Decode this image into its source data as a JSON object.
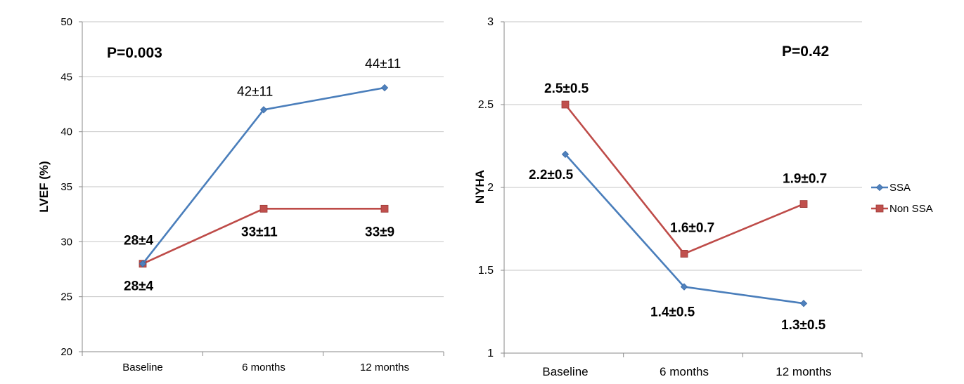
{
  "colors": {
    "ssa": "#4a7ebb",
    "ssa_marker": "#4f81bd",
    "nonssa": "#be4b48",
    "nonssa_marker": "#c0504d",
    "grid": "#c6c6c6",
    "axis": "#8a8a8a",
    "text": "#000000"
  },
  "legend": {
    "placement": "right",
    "items": [
      {
        "label": "SSA",
        "series": "ssa"
      },
      {
        "label": "Non SSA",
        "series": "nonssa"
      }
    ]
  },
  "chart_data": [
    {
      "type": "line",
      "title": "",
      "ylabel": "LVEF (%)",
      "xlabel": "",
      "categories": [
        "Baseline",
        "6 months",
        "12 months"
      ],
      "ylim": [
        20,
        50
      ],
      "yticks": [
        20,
        25,
        30,
        35,
        40,
        45,
        50
      ],
      "grid": true,
      "annotation": "P=0.003",
      "series": [
        {
          "key": "ssa",
          "values": [
            28,
            42,
            44
          ],
          "labels": [
            "28±4",
            "42±11",
            "44±11"
          ]
        },
        {
          "key": "nonssa",
          "values": [
            28,
            33,
            33
          ],
          "labels": [
            "28±4",
            "33±11",
            "33±9"
          ]
        }
      ]
    },
    {
      "type": "line",
      "title": "",
      "ylabel": "NYHA",
      "xlabel": "",
      "categories": [
        "Baseline",
        "6 months",
        "12 months"
      ],
      "ylim": [
        1,
        3
      ],
      "yticks": [
        1,
        1.5,
        2,
        2.5,
        3
      ],
      "grid": true,
      "annotation": "P=0.42",
      "series": [
        {
          "key": "ssa",
          "name": "SSA",
          "values": [
            2.2,
            1.4,
            1.3
          ],
          "labels": [
            "2.2±0.5",
            "1.4±0.5",
            "1.3±0.5"
          ]
        },
        {
          "key": "nonssa",
          "name": "Non SSA",
          "values": [
            2.5,
            1.6,
            1.9
          ],
          "labels": [
            "2.5±0.5",
            "1.6±0.7",
            "1.9±0.7"
          ]
        }
      ]
    }
  ]
}
